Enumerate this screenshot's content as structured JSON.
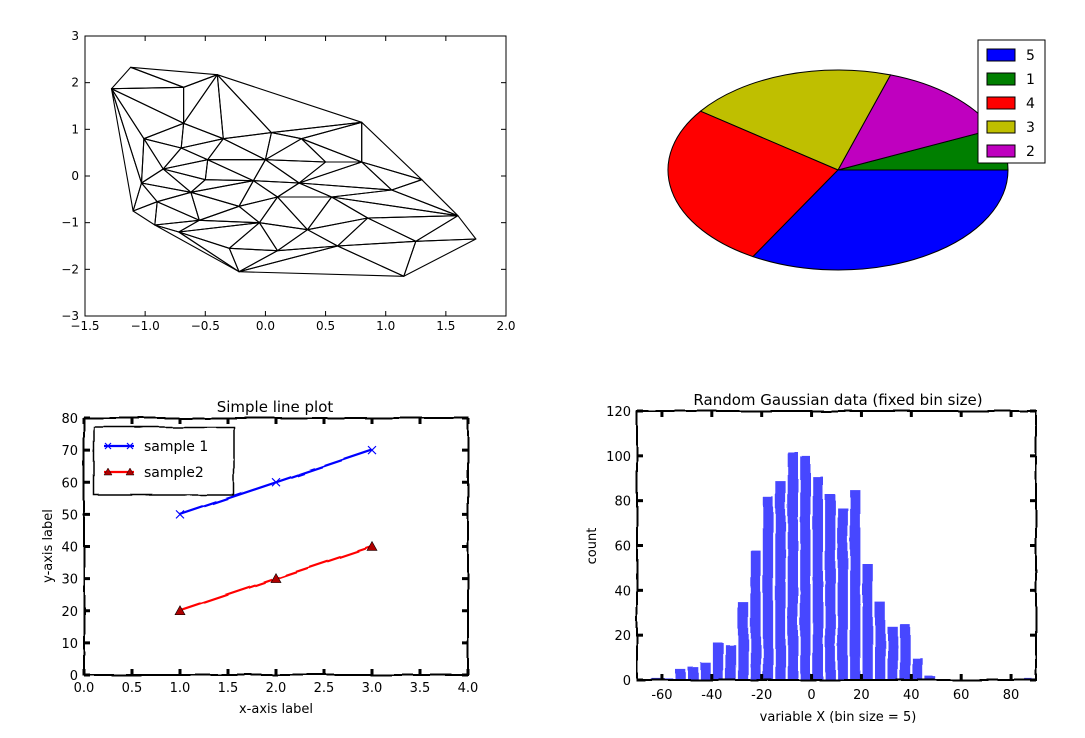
{
  "chart_data": [
    {
      "type": "scatter",
      "subtype": "triangulation-mesh",
      "xlim": [
        -1.5,
        2.0
      ],
      "ylim": [
        -3,
        3
      ],
      "xticks": [
        "−1.5",
        "−1.0",
        "−0.5",
        "0.0",
        "0.5",
        "1.0",
        "1.5",
        "2.0"
      ],
      "yticks": [
        "−3",
        "−2",
        "−1",
        "0",
        "1",
        "2",
        "3"
      ],
      "grid": false,
      "points": [
        [
          -1.12,
          2.33
        ],
        [
          -0.4,
          2.17
        ],
        [
          -1.28,
          1.87
        ],
        [
          -0.68,
          1.9
        ],
        [
          0.8,
          1.15
        ],
        [
          -1.01,
          0.8
        ],
        [
          -0.68,
          1.13
        ],
        [
          -0.35,
          0.8
        ],
        [
          0.05,
          0.93
        ],
        [
          0.3,
          0.8
        ],
        [
          -0.7,
          0.6
        ],
        [
          -0.48,
          0.35
        ],
        [
          0.0,
          0.35
        ],
        [
          0.5,
          0.3
        ],
        [
          0.8,
          0.3
        ],
        [
          -0.85,
          0.15
        ],
        [
          -0.5,
          -0.08
        ],
        [
          -0.1,
          -0.1
        ],
        [
          0.28,
          -0.15
        ],
        [
          1.3,
          -0.08
        ],
        [
          -1.03,
          -0.15
        ],
        [
          -0.9,
          -0.55
        ],
        [
          -0.62,
          -0.35
        ],
        [
          -0.22,
          -0.65
        ],
        [
          0.1,
          -0.45
        ],
        [
          0.55,
          -0.45
        ],
        [
          1.05,
          -0.3
        ],
        [
          1.6,
          -0.85
        ],
        [
          -1.1,
          -0.75
        ],
        [
          -0.92,
          -1.05
        ],
        [
          -0.55,
          -0.95
        ],
        [
          -0.05,
          -1.0
        ],
        [
          0.35,
          -1.15
        ],
        [
          0.85,
          -0.9
        ],
        [
          1.25,
          -1.4
        ],
        [
          -0.72,
          -1.2
        ],
        [
          -0.3,
          -1.55
        ],
        [
          0.1,
          -1.6
        ],
        [
          0.6,
          -1.5
        ],
        [
          1.75,
          -1.35
        ],
        [
          -0.22,
          -2.05
        ],
        [
          1.15,
          -2.15
        ]
      ],
      "triangles": [
        [
          0,
          1,
          3
        ],
        [
          0,
          2,
          3
        ],
        [
          1,
          3,
          6
        ],
        [
          1,
          6,
          7
        ],
        [
          1,
          7,
          8
        ],
        [
          1,
          8,
          4
        ],
        [
          2,
          3,
          6
        ],
        [
          2,
          5,
          6
        ],
        [
          5,
          6,
          10
        ],
        [
          6,
          7,
          10
        ],
        [
          7,
          8,
          12
        ],
        [
          7,
          10,
          11
        ],
        [
          7,
          11,
          12
        ],
        [
          8,
          9,
          12
        ],
        [
          8,
          9,
          4
        ],
        [
          9,
          4,
          14
        ],
        [
          9,
          12,
          13
        ],
        [
          9,
          13,
          14
        ],
        [
          4,
          14,
          19
        ],
        [
          5,
          10,
          15
        ],
        [
          10,
          11,
          15
        ],
        [
          11,
          12,
          17
        ],
        [
          11,
          16,
          17
        ],
        [
          11,
          15,
          16
        ],
        [
          12,
          13,
          18
        ],
        [
          12,
          17,
          18
        ],
        [
          13,
          14,
          18
        ],
        [
          14,
          18,
          26
        ],
        [
          14,
          26,
          19
        ],
        [
          2,
          5,
          20
        ],
        [
          5,
          15,
          20
        ],
        [
          15,
          16,
          22
        ],
        [
          15,
          20,
          22
        ],
        [
          16,
          17,
          22
        ],
        [
          17,
          22,
          23
        ],
        [
          17,
          18,
          24
        ],
        [
          17,
          23,
          24
        ],
        [
          18,
          24,
          25
        ],
        [
          18,
          25,
          26
        ],
        [
          26,
          19,
          27
        ],
        [
          25,
          26,
          27
        ],
        [
          20,
          21,
          28
        ],
        [
          20,
          21,
          22
        ],
        [
          21,
          22,
          30
        ],
        [
          22,
          23,
          30
        ],
        [
          23,
          24,
          31
        ],
        [
          23,
          30,
          31
        ],
        [
          24,
          25,
          32
        ],
        [
          24,
          31,
          32
        ],
        [
          25,
          27,
          33
        ],
        [
          25,
          32,
          33
        ],
        [
          27,
          33,
          34
        ],
        [
          27,
          34,
          39
        ],
        [
          2,
          20,
          28
        ],
        [
          28,
          29,
          21
        ],
        [
          21,
          29,
          30
        ],
        [
          29,
          30,
          35
        ],
        [
          30,
          31,
          35
        ],
        [
          31,
          35,
          36
        ],
        [
          31,
          32,
          37
        ],
        [
          31,
          36,
          37
        ],
        [
          32,
          33,
          38
        ],
        [
          32,
          37,
          38
        ],
        [
          33,
          34,
          38
        ],
        [
          34,
          38,
          41
        ],
        [
          34,
          39,
          41
        ],
        [
          29,
          35,
          40
        ],
        [
          35,
          36,
          40
        ],
        [
          36,
          37,
          40
        ],
        [
          37,
          38,
          40
        ],
        [
          38,
          40,
          41
        ]
      ]
    },
    {
      "type": "pie",
      "style": "tilted",
      "labels": [
        "1",
        "2",
        "3",
        "4",
        "5"
      ],
      "values": [
        1,
        2,
        3,
        4,
        5
      ],
      "colors": [
        "#007f00",
        "#bf00bf",
        "#bfbf00",
        "#ff0000",
        "#0000ff"
      ],
      "legend": [
        "5",
        "1",
        "4",
        "3",
        "2"
      ],
      "legend_colors": [
        "#0000ff",
        "#007f00",
        "#ff0000",
        "#bfbf00",
        "#bf00bf"
      ],
      "legend_position": "upper right"
    },
    {
      "type": "line",
      "style": "xkcd",
      "title": "Simple line plot",
      "xlabel": "x-axis label",
      "ylabel": "y-axis label",
      "xlim": [
        0,
        4
      ],
      "ylim": [
        0,
        80
      ],
      "xticks": [
        "0.0",
        "0.5",
        "1.0",
        "1.5",
        "2.0",
        "2.5",
        "3.0",
        "3.5",
        "4.0"
      ],
      "yticks": [
        "0",
        "10",
        "20",
        "30",
        "40",
        "50",
        "60",
        "70",
        "80"
      ],
      "x": [
        1,
        2,
        3
      ],
      "series": [
        {
          "name": "sample 1",
          "values": [
            50,
            60,
            70
          ],
          "color": "#0000ff",
          "marker": "x"
        },
        {
          "name": "sample2",
          "values": [
            20,
            30,
            40
          ],
          "color": "#ff0000",
          "marker": "triangle"
        }
      ],
      "legend_position": "upper left"
    },
    {
      "type": "bar",
      "subtype": "histogram",
      "style": "xkcd",
      "title": "Random Gaussian data (fixed bin size)",
      "xlabel": "variable X (bin size = 5)",
      "ylabel": "count",
      "xlim": [
        -70,
        90
      ],
      "ylim": [
        0,
        120
      ],
      "xticks": [
        "-60",
        "-40",
        "-20",
        "0",
        "20",
        "40",
        "60",
        "80"
      ],
      "yticks": [
        "0",
        "20",
        "40",
        "60",
        "80",
        "100",
        "120"
      ],
      "bin_size": 5,
      "bin_edges": [
        -70,
        -65,
        -60,
        -55,
        -50,
        -45,
        -40,
        -35,
        -30,
        -25,
        -20,
        -15,
        -10,
        -5,
        0,
        5,
        10,
        15,
        20,
        25,
        30,
        35,
        40,
        45,
        50,
        55,
        60,
        65,
        70,
        75,
        80,
        85,
        90
      ],
      "values": [
        0,
        1,
        1,
        5,
        6,
        8,
        17,
        16,
        35,
        58,
        82,
        89,
        102,
        100,
        91,
        83,
        77,
        85,
        52,
        35,
        24,
        25,
        10,
        2,
        0,
        0,
        0,
        0,
        0,
        0,
        0,
        1
      ],
      "color": "#0000ff"
    }
  ]
}
